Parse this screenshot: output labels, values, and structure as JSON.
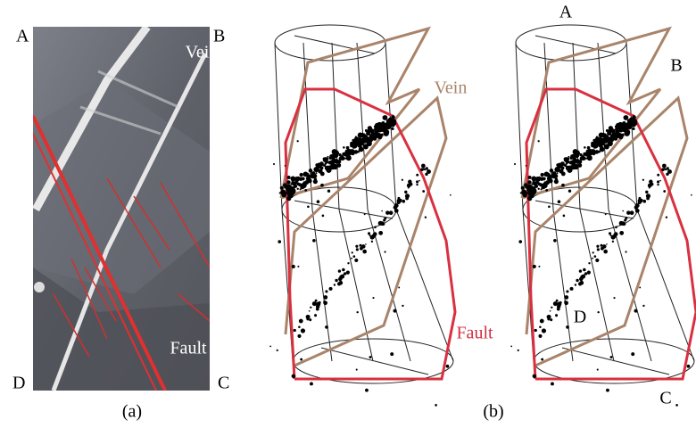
{
  "panel_a": {
    "corners": {
      "top_left": "A",
      "top_right": "B",
      "bottom_right": "C",
      "bottom_left": "D"
    },
    "labels": {
      "vein": "Vein",
      "fault": "Fault"
    },
    "caption": "(a)"
  },
  "panel_b": {
    "labels": {
      "vein": "Vein",
      "fault": "Fault"
    },
    "caption": "(b)"
  },
  "panel_c": {
    "corners": {
      "a": "A",
      "b": "B",
      "c": "C",
      "d": "D"
    }
  }
}
